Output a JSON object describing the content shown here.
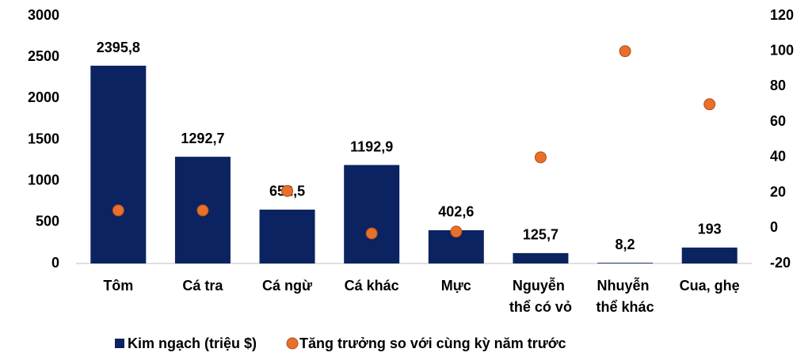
{
  "chart_data": {
    "type": "bar",
    "categories": [
      "Tôm",
      "Cá tra",
      "Cá ngừ",
      "Cá khác",
      "Mực",
      "Nguyễn thể có vỏ",
      "Nhuyễn thể khác",
      "Cua, ghẹ"
    ],
    "series": [
      {
        "name": "Kim ngạch (triệu $)",
        "color": "#0b2360",
        "values": [
          2395.8,
          1292.7,
          652.5,
          1192.9,
          402.6,
          125.7,
          8.2,
          193
        ],
        "value_labels": [
          "2395,8",
          "1292,7",
          "652,5",
          "1192,9",
          "402,6",
          "125,7",
          "8,2",
          "193"
        ]
      },
      {
        "name": "Tăng trưởng so với cùng kỳ năm trước",
        "color": "#e8702a",
        "type": "scatter",
        "axis": "y2",
        "values": [
          10,
          10,
          21,
          -3,
          -2,
          40,
          100,
          70
        ]
      }
    ],
    "ylim": [
      0,
      3000
    ],
    "yticks": [
      0,
      500,
      1000,
      1500,
      2000,
      2500,
      3000
    ],
    "y2lim": [
      -20,
      120
    ],
    "y2ticks": [
      -20,
      0,
      20,
      40,
      60,
      80,
      100,
      120
    ]
  }
}
